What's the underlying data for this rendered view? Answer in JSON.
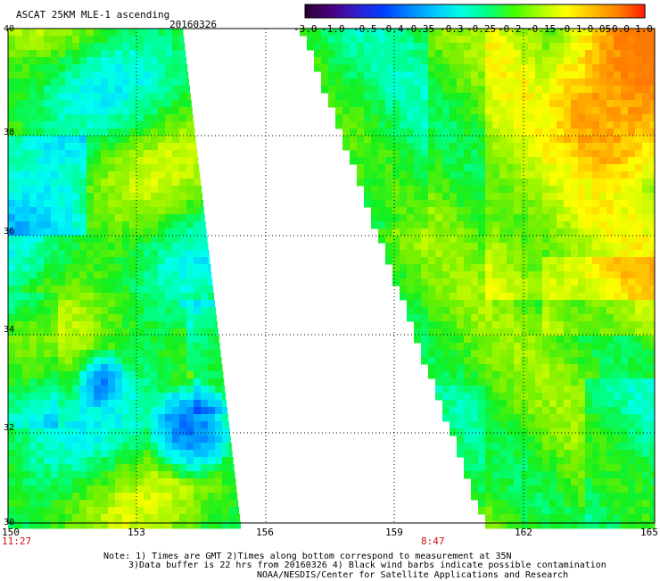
{
  "header": {
    "title": "ASCAT 25KM MLE-1 ascending",
    "date": "20160326"
  },
  "colorbar": {
    "tick_labels": [
      "-3.0",
      "-1.0",
      "-0.5",
      "-0.4",
      "-0.35",
      "-0.3",
      "-0.25",
      "-0.2",
      "-0.15",
      "-0.1",
      "-0.05",
      "0.0",
      "1.0"
    ],
    "colors": [
      "#3a0050",
      "#6a00b0",
      "#0030ff",
      "#0080ff",
      "#00c0ff",
      "#00ffff",
      "#00ffa0",
      "#00ff00",
      "#90ff00",
      "#ffff00",
      "#ffa000",
      "#ff6000",
      "#ff1010"
    ]
  },
  "axes": {
    "lon_labels": [
      "150",
      "153",
      "156",
      "159",
      "162",
      "165"
    ],
    "lat_labels": [
      "40",
      "38",
      "36",
      "34",
      "32",
      "30"
    ],
    "time_labels": [
      "11:27",
      "8:47"
    ]
  },
  "notes": {
    "line1": "Note: 1) Times are GMT 2)Times along bottom correspond to measurement at 35N",
    "line2": "3)Data buffer is 22 hrs from 20160326 4) Black wind barbs indicate possible contamination",
    "line3": "NOAA/NESDIS/Center for Satellite Applications and Research"
  }
}
